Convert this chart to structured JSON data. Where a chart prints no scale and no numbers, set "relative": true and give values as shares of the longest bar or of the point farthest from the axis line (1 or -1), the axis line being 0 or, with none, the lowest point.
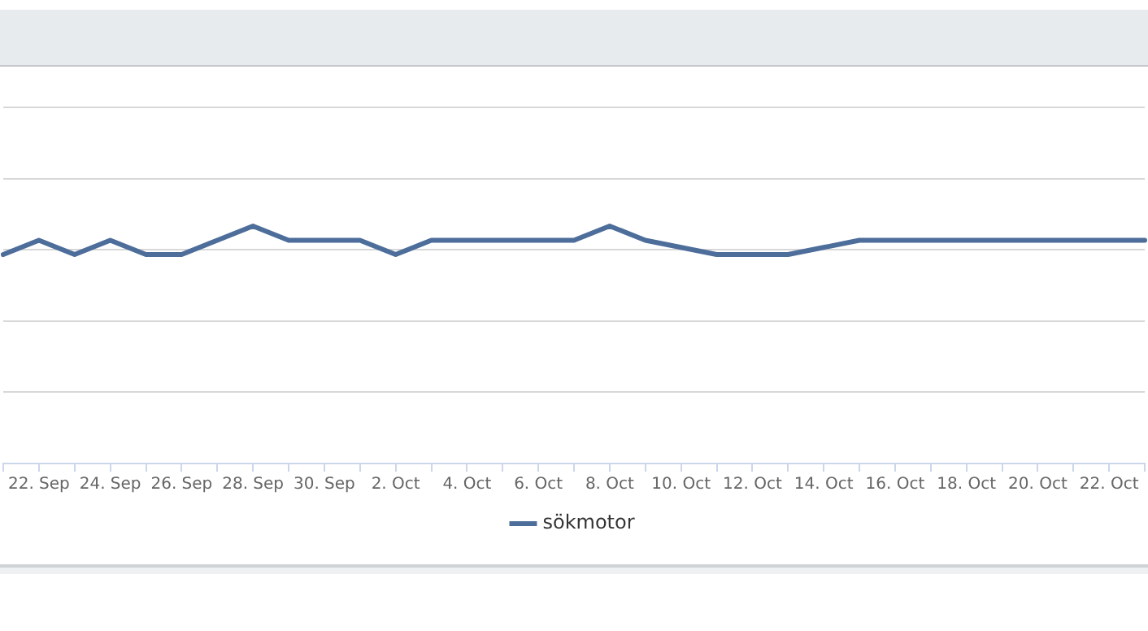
{
  "chart_data": {
    "type": "line",
    "relative": true,
    "grid": "y",
    "legend": "bottom",
    "marker": "none",
    "line_style": "solid",
    "categories": [
      null,
      "22. Sep",
      null,
      "24. Sep",
      null,
      "26. Sep",
      null,
      "28. Sep",
      null,
      "30. Sep",
      null,
      "2. Oct",
      null,
      "4. Oct",
      null,
      "6. Oct",
      null,
      "8. Oct",
      null,
      "10. Oct",
      null,
      "12. Oct",
      null,
      "14. Oct",
      null,
      "16. Oct",
      null,
      "18. Oct",
      null,
      "20. Oct",
      null,
      "22. Oct",
      null
    ],
    "series": [
      {
        "name": "sökmotor",
        "color": "#4d6d9a",
        "values": [
          0.88,
          0.94,
          0.88,
          0.94,
          0.88,
          0.88,
          0.94,
          1,
          0.94,
          0.94,
          0.94,
          0.88,
          0.94,
          0.94,
          0.94,
          0.94,
          0.94,
          1,
          0.94,
          0.91,
          0.88,
          0.88,
          0.88,
          0.91,
          0.94,
          0.94,
          0.94,
          0.94,
          0.94,
          0.94,
          0.94,
          0.94,
          0.94
        ]
      }
    ]
  }
}
